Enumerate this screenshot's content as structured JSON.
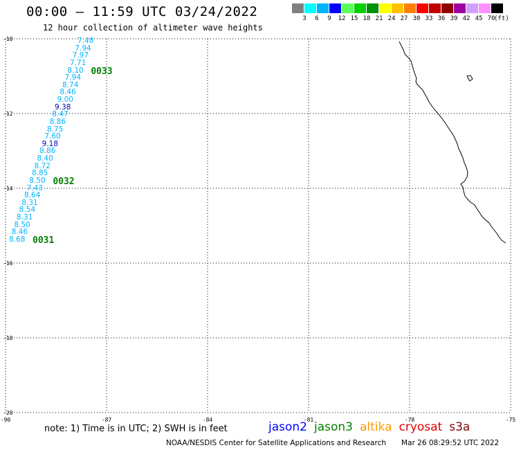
{
  "title": "00:00 – 11:59 UTC 03/24/2022",
  "subtitle": "12 hour collection of altimeter wave heights",
  "colorbar": {
    "colors": [
      "#808080",
      "#00ffff",
      "#00b4ff",
      "#0000ff",
      "#5aff5a",
      "#00d000",
      "#009000",
      "#ffff00",
      "#ffc000",
      "#ff8000",
      "#ff0000",
      "#c00000",
      "#900000",
      "#a000a0",
      "#d0a0ff",
      "#ff90ff",
      "#000000"
    ],
    "ticks": [
      "3",
      "6",
      "9",
      "12",
      "15",
      "18",
      "21",
      "24",
      "27",
      "30",
      "33",
      "36",
      "39",
      "42",
      "45",
      "70"
    ],
    "unit": "(ft)"
  },
  "map": {
    "lat_labels": [
      "-10",
      "-12",
      "-14",
      "-16",
      "-18",
      "-20"
    ],
    "lon_labels": [
      "-90",
      "-87",
      "-84",
      "-81",
      "-78",
      "-75"
    ]
  },
  "wave_heights": [
    {
      "value": "7.48",
      "color": "#00b4ff"
    },
    {
      "value": "7.94",
      "color": "#00b4ff"
    },
    {
      "value": "7.97",
      "color": "#00b4ff"
    },
    {
      "value": "7.71",
      "color": "#00b4ff"
    },
    {
      "value": "8.10",
      "color": "#00b4ff"
    },
    {
      "value": "7.94",
      "color": "#00b4ff"
    },
    {
      "value": "8.74",
      "color": "#00b4ff"
    },
    {
      "value": "8.46",
      "color": "#00b4ff"
    },
    {
      "value": "9.00",
      "color": "#00b4ff"
    },
    {
      "value": "9.38",
      "color": "#0000c0"
    },
    {
      "value": "8.47",
      "color": "#00b4ff"
    },
    {
      "value": "8.86",
      "color": "#00b4ff"
    },
    {
      "value": "8.75",
      "color": "#00b4ff"
    },
    {
      "value": "7.60",
      "color": "#00b4ff"
    },
    {
      "value": "9.18",
      "color": "#0000c0"
    },
    {
      "value": "8.86",
      "color": "#00b4ff"
    },
    {
      "value": "8.40",
      "color": "#00b4ff"
    },
    {
      "value": "8.72",
      "color": "#00b4ff"
    },
    {
      "value": "8.85",
      "color": "#00b4ff"
    },
    {
      "value": "8.50",
      "color": "#00b4ff"
    },
    {
      "value": "7.43",
      "color": "#00b4ff"
    },
    {
      "value": "8.64",
      "color": "#00b4ff"
    },
    {
      "value": "8.31",
      "color": "#00b4ff"
    },
    {
      "value": "8.54",
      "color": "#00b4ff"
    },
    {
      "value": "8.31",
      "color": "#00b4ff"
    },
    {
      "value": "8.50",
      "color": "#00b4ff"
    },
    {
      "value": "8.46",
      "color": "#00b4ff"
    },
    {
      "value": "8.68",
      "color": "#00b4ff"
    }
  ],
  "pass_times": [
    "0033",
    "0032",
    "0031"
  ],
  "note": "note:  1) Time is in UTC;  2) SWH is in feet",
  "legend": [
    {
      "label": "jason2",
      "color": "#0000ff"
    },
    {
      "label": "jason3",
      "color": "#008000"
    },
    {
      "label": "altika",
      "color": "#ff9900"
    },
    {
      "label": "cryosat",
      "color": "#e00000"
    },
    {
      "label": "s3a",
      "color": "#800000"
    }
  ],
  "credit": "NOAA/NESDIS Center for Satellite Applications and Research",
  "timestamp": "Mar 26 08:29:52 UTC 2022"
}
